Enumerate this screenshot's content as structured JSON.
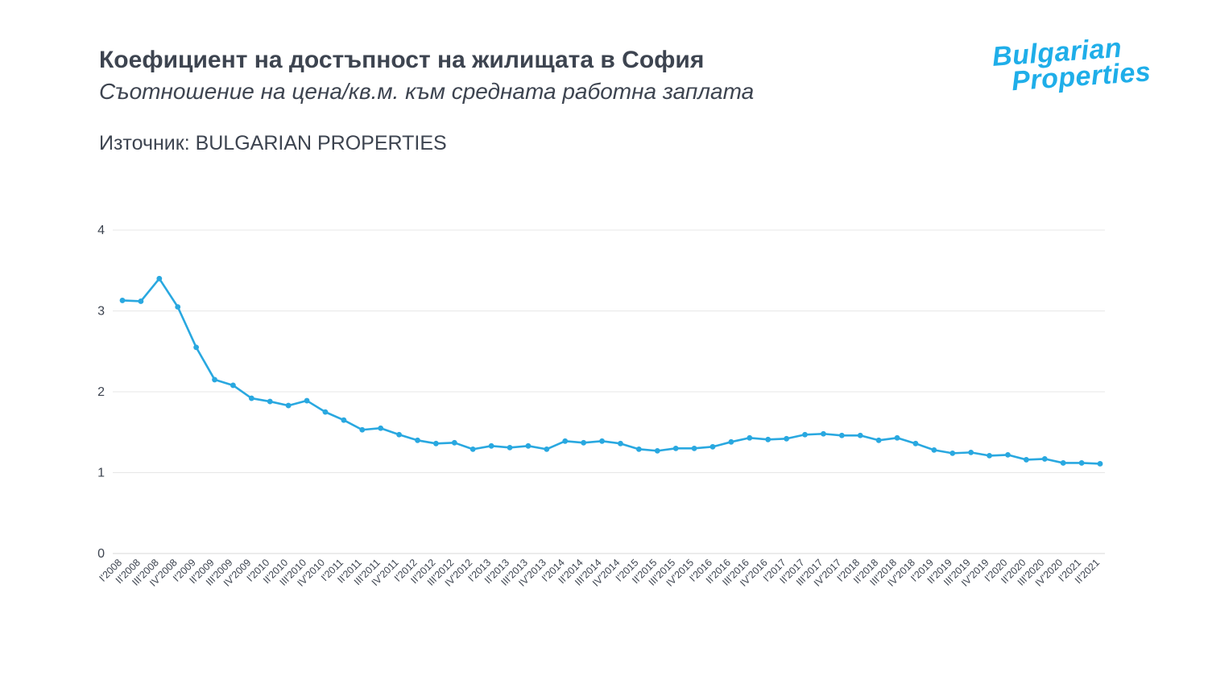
{
  "header": {
    "title": "Коефициент на достъпност на жилищата в София",
    "subtitle": "Съотношение на цена/кв.м. към средната работна заплата",
    "source": "Източник: BULGARIAN PROPERTIES"
  },
  "logo": {
    "line1": "Bulgarian",
    "line2": "Properties"
  },
  "colors": {
    "line": "#29a8e0",
    "point": "#29a8e0",
    "grid": "#e7e7e7",
    "axis_text": "#3d4450",
    "logo": "#1faee9"
  },
  "chart_data": {
    "type": "line",
    "title": "Коефициент на достъпност на жилищата в София",
    "subtitle": "Съотношение на цена/кв.м. към средната работна заплата",
    "source": "Източник: BULGARIAN PROPERTIES",
    "xlabel": "",
    "ylabel": "",
    "ylim": [
      0,
      4
    ],
    "yticks": [
      0,
      1,
      2,
      3,
      4
    ],
    "grid": true,
    "legend": false,
    "categories": [
      "I'2008",
      "II'2008",
      "III'2008",
      "IV'2008",
      "I'2009",
      "II'2009",
      "III'2009",
      "IV'2009",
      "I'2010",
      "II'2010",
      "III'2010",
      "IV'2010",
      "I'2011",
      "II'2011",
      "III'2011",
      "IV'2011",
      "I'2012",
      "II'2012",
      "III'2012",
      "IV'2012",
      "I'2013",
      "II'2013",
      "III'2013",
      "IV'2013",
      "I'2014",
      "II'2014",
      "III'2014",
      "IV'2014",
      "I'2015",
      "II'2015",
      "III'2015",
      "IV'2015",
      "I'2016",
      "II'2016",
      "III'2016",
      "IV'2016",
      "I'2017",
      "II'2017",
      "III'2017",
      "IV'2017",
      "I'2018",
      "II'2018",
      "III'2018",
      "IV'2018",
      "I'2019",
      "II'2019",
      "III'2019",
      "IV'2019",
      "I'2020",
      "II'2020",
      "III'2020",
      "IV'2020",
      "I'2021",
      "II'2021"
    ],
    "values": [
      3.13,
      3.12,
      3.4,
      3.05,
      2.55,
      2.15,
      2.08,
      1.92,
      1.88,
      1.83,
      1.89,
      1.75,
      1.65,
      1.53,
      1.55,
      1.47,
      1.4,
      1.36,
      1.37,
      1.29,
      1.33,
      1.31,
      1.33,
      1.29,
      1.39,
      1.37,
      1.39,
      1.36,
      1.29,
      1.27,
      1.3,
      1.3,
      1.32,
      1.38,
      1.43,
      1.41,
      1.42,
      1.47,
      1.48,
      1.46,
      1.46,
      1.4,
      1.43,
      1.36,
      1.28,
      1.24,
      1.25,
      1.21,
      1.22,
      1.16,
      1.17,
      1.12,
      1.12,
      1.11
    ]
  }
}
